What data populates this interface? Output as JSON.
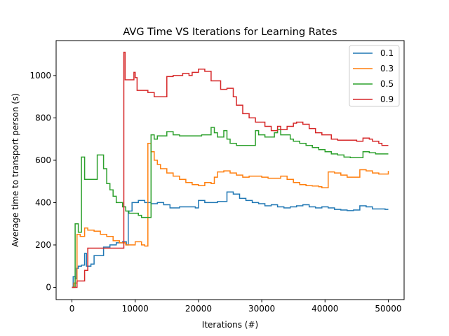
{
  "chart_data": {
    "type": "line",
    "title": "AVG Time VS Iterations for Learning Rates",
    "xlabel": "Iterations (#)",
    "ylabel": "Average time to transport person (s)",
    "xlim": [
      -2500,
      52500
    ],
    "ylim": [
      -58,
      1165
    ],
    "xticks": [
      0,
      10000,
      20000,
      30000,
      40000,
      50000
    ],
    "yticks": [
      0,
      200,
      400,
      600,
      800,
      1000
    ],
    "grid": false,
    "legend_position": "top-right",
    "step": true,
    "series": [
      {
        "name": "0.1",
        "color": "#1f77b4",
        "x": [
          0,
          200,
          500,
          700,
          1000,
          1500,
          2000,
          2300,
          3000,
          3500,
          4000,
          5000,
          6000,
          7000,
          8000,
          8600,
          8900,
          9500,
          10500,
          11500,
          12500,
          13500,
          14500,
          15500,
          17000,
          19500,
          20000,
          21000,
          23000,
          24500,
          25500,
          26500,
          27500,
          28500,
          29500,
          30500,
          31500,
          32500,
          33500,
          34500,
          35500,
          36500,
          37500,
          38500,
          39500,
          40500,
          41500,
          42500,
          43500,
          44500,
          45500,
          46500,
          47500,
          48500,
          49500,
          50000
        ],
        "y": [
          0,
          50,
          40,
          90,
          100,
          105,
          160,
          100,
          110,
          150,
          150,
          190,
          200,
          210,
          215,
          200,
          360,
          400,
          410,
          400,
          395,
          400,
          390,
          375,
          380,
          375,
          410,
          400,
          405,
          450,
          440,
          420,
          410,
          400,
          395,
          385,
          390,
          380,
          375,
          380,
          385,
          390,
          380,
          375,
          380,
          375,
          368,
          365,
          362,
          365,
          385,
          380,
          370,
          370,
          368,
          368
        ]
      },
      {
        "name": "0.3",
        "color": "#ff7f0e",
        "x": [
          0,
          300,
          800,
          1300,
          2000,
          2500,
          3500,
          4500,
          5500,
          6500,
          7500,
          8500,
          10000,
          11000,
          11500,
          12000,
          12500,
          13000,
          13500,
          14000,
          15000,
          16000,
          17000,
          18000,
          19000,
          20000,
          21000,
          22000,
          22500,
          23000,
          24000,
          25000,
          26000,
          27000,
          28000,
          30000,
          31000,
          33000,
          34000,
          35000,
          36000,
          37000,
          38000,
          39000,
          39500,
          40500,
          41500,
          42500,
          43500,
          45000,
          45500,
          46500,
          47500,
          48500,
          49500,
          50000
        ],
        "y": [
          0,
          20,
          250,
          240,
          280,
          270,
          265,
          250,
          240,
          220,
          210,
          200,
          215,
          200,
          195,
          680,
          640,
          600,
          580,
          560,
          540,
          525,
          510,
          495,
          485,
          480,
          495,
          490,
          520,
          545,
          550,
          540,
          530,
          520,
          525,
          520,
          515,
          525,
          510,
          495,
          485,
          480,
          478,
          475,
          470,
          545,
          540,
          530,
          520,
          520,
          555,
          550,
          540,
          535,
          535,
          550
        ]
      },
      {
        "name": "0.5",
        "color": "#2ca02c",
        "x": [
          0,
          500,
          1000,
          1500,
          2000,
          2500,
          4000,
          5000,
          5500,
          6000,
          6500,
          7000,
          8000,
          8500,
          9000,
          10500,
          11000,
          12500,
          13000,
          13500,
          15000,
          16000,
          17000,
          19000,
          20500,
          22000,
          22500,
          23000,
          24000,
          24500,
          25000,
          26000,
          27000,
          29000,
          29500,
          30500,
          32000,
          32500,
          33000,
          34500,
          35000,
          36000,
          37000,
          38000,
          39000,
          40000,
          41000,
          42000,
          43000,
          44000,
          45000,
          46000,
          47000,
          48000,
          49000,
          50000
        ],
        "y": [
          0,
          300,
          260,
          615,
          510,
          510,
          625,
          560,
          490,
          460,
          430,
          400,
          380,
          360,
          350,
          340,
          330,
          720,
          700,
          715,
          735,
          720,
          715,
          715,
          720,
          755,
          730,
          710,
          740,
          700,
          680,
          670,
          670,
          740,
          720,
          710,
          730,
          745,
          720,
          700,
          690,
          680,
          670,
          660,
          650,
          640,
          630,
          625,
          615,
          612,
          612,
          640,
          635,
          630,
          630,
          630
        ]
      },
      {
        "name": "0.9",
        "color": "#d62728",
        "x": [
          0,
          800,
          1000,
          2000,
          2500,
          8000,
          8200,
          8400,
          9000,
          9800,
          10000,
          10300,
          12000,
          13000,
          15000,
          16000,
          17500,
          18500,
          19000,
          20000,
          21000,
          22000,
          23500,
          24500,
          25500,
          26000,
          27000,
          28000,
          29000,
          30500,
          31500,
          32500,
          33000,
          34000,
          35000,
          35500,
          36500,
          37500,
          38500,
          39500,
          41000,
          42000,
          43000,
          44000,
          45000,
          46000,
          47000,
          47500,
          48500,
          49000,
          49500,
          50000
        ],
        "y": [
          0,
          30,
          30,
          80,
          185,
          185,
          1110,
          980,
          980,
          1015,
          990,
          930,
          920,
          900,
          995,
          1000,
          1010,
          1000,
          1015,
          1030,
          1020,
          975,
          935,
          940,
          900,
          860,
          820,
          800,
          780,
          760,
          740,
          760,
          745,
          760,
          775,
          780,
          770,
          750,
          730,
          720,
          700,
          695,
          695,
          695,
          690,
          705,
          700,
          690,
          680,
          670,
          670,
          670
        ]
      }
    ]
  }
}
